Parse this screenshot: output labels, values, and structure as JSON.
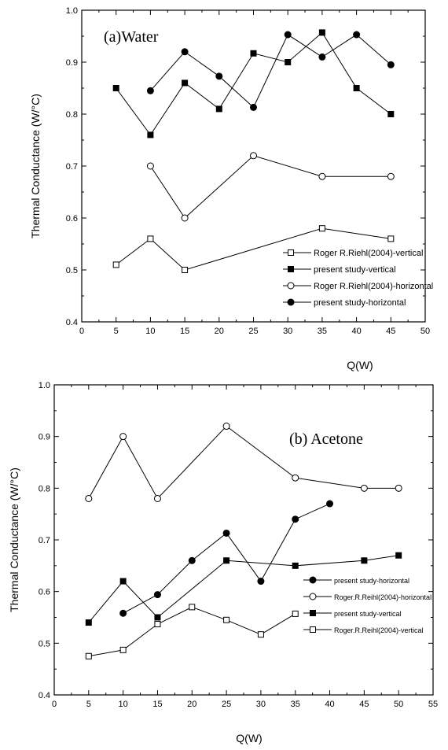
{
  "chart_data": [
    {
      "type": "line",
      "panel_title": "(a)Water",
      "xlabel": "Q(W)",
      "ylabel": "Thermal Conductance (W/°C)",
      "xlim": [
        0,
        50
      ],
      "ylim": [
        0.4,
        1.0
      ],
      "xticks": [
        0,
        5,
        10,
        15,
        20,
        25,
        30,
        35,
        40,
        45,
        50
      ],
      "yticks": [
        0.4,
        0.5,
        0.6,
        0.7,
        0.8,
        0.9,
        1.0
      ],
      "grid": false,
      "legend_position": "bottom-right",
      "series": [
        {
          "name": "Roger R.Riehl(2004)-vertical",
          "marker": "open-square",
          "x": [
            5,
            10,
            15,
            35,
            45
          ],
          "y": [
            0.51,
            0.56,
            0.5,
            0.58,
            0.56
          ]
        },
        {
          "name": "present study-vertical",
          "marker": "filled-square",
          "x": [
            5,
            10,
            15,
            20,
            25,
            30,
            35,
            40,
            45
          ],
          "y": [
            0.85,
            0.76,
            0.86,
            0.81,
            0.917,
            0.9,
            0.957,
            0.85,
            0.8
          ]
        },
        {
          "name": "Roger R.Riehl(2004)-horizontal",
          "marker": "open-circle",
          "x": [
            10,
            15,
            25,
            35,
            45
          ],
          "y": [
            0.7,
            0.6,
            0.72,
            0.68,
            0.68
          ]
        },
        {
          "name": "present study-horizontal",
          "marker": "filled-circle",
          "x": [
            10,
            15,
            20,
            25,
            30,
            35,
            40,
            45
          ],
          "y": [
            0.845,
            0.92,
            0.873,
            0.813,
            0.953,
            0.91,
            0.953,
            0.895
          ]
        }
      ]
    },
    {
      "type": "line",
      "panel_title": "(b) Acetone",
      "xlabel": "Q(W)",
      "ylabel": "Thermal Conductance (W/°C)",
      "xlim": [
        0,
        55
      ],
      "ylim": [
        0.4,
        1.0
      ],
      "xticks": [
        0,
        5,
        10,
        15,
        20,
        25,
        30,
        35,
        40,
        45,
        50,
        55
      ],
      "yticks": [
        0.4,
        0.5,
        0.6,
        0.7,
        0.8,
        0.9,
        1.0
      ],
      "grid": false,
      "legend_position": "center-right",
      "series": [
        {
          "name": "present study-horizontal",
          "marker": "filled-circle",
          "x": [
            10,
            15,
            20,
            25,
            30,
            35,
            40
          ],
          "y": [
            0.558,
            0.594,
            0.66,
            0.713,
            0.62,
            0.74,
            0.77
          ]
        },
        {
          "name": "Roger.R.Reihl(2004)-horizontal",
          "marker": "open-circle",
          "x": [
            5,
            10,
            15,
            25,
            35,
            45,
            50
          ],
          "y": [
            0.78,
            0.9,
            0.78,
            0.92,
            0.82,
            0.8,
            0.8
          ]
        },
        {
          "name": "present study-vertical",
          "marker": "filled-square",
          "x": [
            5,
            10,
            15,
            25,
            35,
            45,
            50
          ],
          "y": [
            0.54,
            0.62,
            0.55,
            0.66,
            0.65,
            0.66,
            0.67
          ]
        },
        {
          "name": "Roger.R.Reihl(2004)-vertical",
          "marker": "open-square",
          "x": [
            5,
            10,
            15,
            20,
            25,
            30,
            35
          ],
          "y": [
            0.475,
            0.487,
            0.537,
            0.57,
            0.545,
            0.517,
            0.557
          ]
        }
      ]
    }
  ]
}
